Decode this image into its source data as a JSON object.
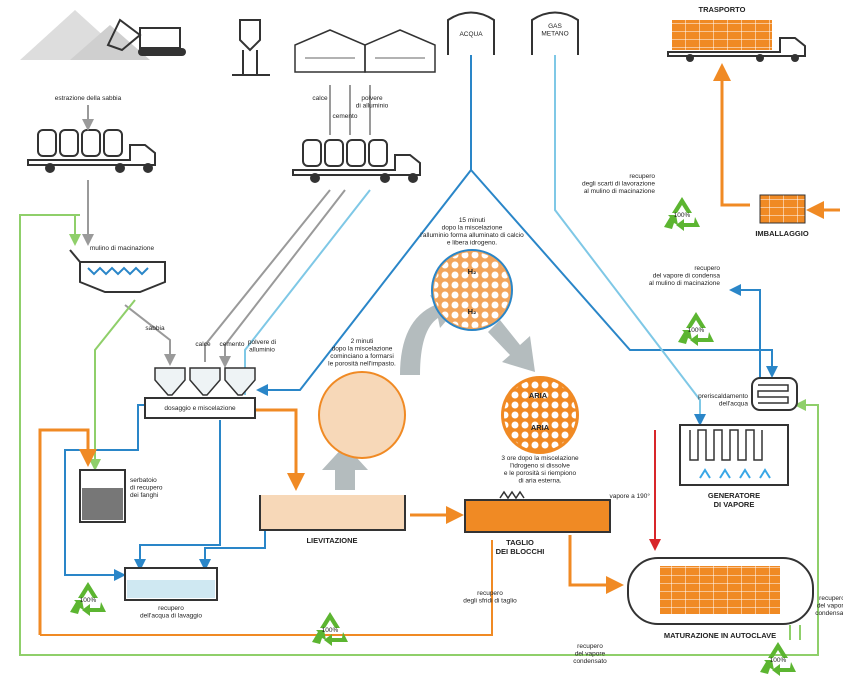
{
  "labels": {
    "estrazione": [
      "estrazione della sabbia"
    ],
    "calce_top": [
      "calce"
    ],
    "cemento_top": [
      "cemento"
    ],
    "alluminio_top": [
      "polvere",
      "di alluminio"
    ],
    "acqua": [
      "ACQUA"
    ],
    "gas": [
      "GAS",
      "METANO"
    ],
    "trasporto": [
      "TRASPORTO"
    ],
    "recupero_scarti": [
      "recupero",
      "degli scarti di lavorazione",
      "al mulino di macinazione"
    ],
    "imballaggio": [
      "IMBALLAGGIO"
    ],
    "mulino": [
      "mulino di macinazione"
    ],
    "sabbia": [
      "sabbia"
    ],
    "calce": [
      "calce"
    ],
    "cemento": [
      "cemento"
    ],
    "alluminio": [
      "polvere di",
      "alluminio"
    ],
    "dosaggio": [
      "dosaggio e miscelazione"
    ],
    "quindici_minuti": [
      "15 minuti",
      "dopo la miscelazione",
      "l'alluminio forma alluminato di calcio",
      "e libera idrogeno."
    ],
    "h2_top": [
      "H₂"
    ],
    "h2_bottom": [
      "H₂"
    ],
    "due_minuti": [
      "2 minuti",
      "dopo la miscelazione",
      "cominciano a formarsi",
      "le porosità nell'impasto."
    ],
    "aria_top": [
      "ARIA"
    ],
    "aria_bottom": [
      "ARIA"
    ],
    "tre_ore": [
      "3 ore dopo la miscelazione",
      "l'idrogeno si dissolve",
      "e le porosità si riempiono",
      "di aria esterna."
    ],
    "recupero_vapore_condensa": [
      "recupero",
      "del vapore di condensa",
      "al mulino di macinazione"
    ],
    "preriscaldamento": [
      "preriscaldamento",
      "dell'acqua"
    ],
    "generatore": [
      "GENERATORE",
      "DI VAPORE"
    ],
    "vapore": [
      "vapore a 190°"
    ],
    "serbatoio": [
      "serbatoio",
      "di recupero",
      "dei fanghi"
    ],
    "lievitazione": [
      "LIEVITAZIONE"
    ],
    "taglio": [
      "TAGLIO",
      "DEI BLOCCHI"
    ],
    "recupero_lavaggio": [
      "recupero",
      "dell'acqua di lavaggio"
    ],
    "recupero_sfridi": [
      "recupero",
      "degli sfridi di taglio"
    ],
    "maturazione": [
      "MATURAZIONE IN AUTOCLAVE"
    ],
    "recupero_condensato_right": [
      "recupero",
      "del vapore",
      "condensato"
    ],
    "recupero_condensato_bottom": [
      "recupero",
      "del vapore",
      "condensato"
    ]
  },
  "recycle_icons": [
    "100%",
    "100%",
    "100%",
    "100%",
    "100%"
  ]
}
